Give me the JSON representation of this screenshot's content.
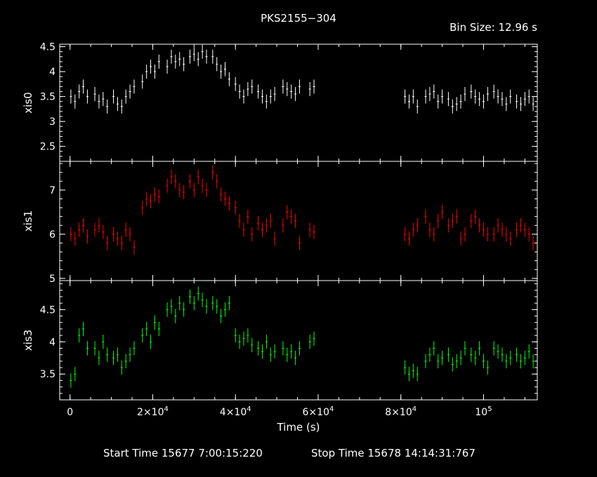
{
  "chart_data": {
    "type": "scatter",
    "title": "PKS2155−304",
    "bin_size": "Bin Size: 12.96 s",
    "xlabel": "Time (s)",
    "xlim": [
      -2500,
      113000
    ],
    "x_ticks": [
      {
        "value": 0,
        "label": "0",
        "exp": ""
      },
      {
        "value": 20000,
        "label": "2×10",
        "exp": "4"
      },
      {
        "value": 40000,
        "label": "4×10",
        "exp": "4"
      },
      {
        "value": 60000,
        "label": "6×10",
        "exp": "4"
      },
      {
        "value": 80000,
        "label": "8×10",
        "exp": "4"
      },
      {
        "value": 100000,
        "label": "10",
        "exp": "5"
      }
    ],
    "footer": {
      "start": "Start Time 15677  7:00:15:220",
      "stop": "Stop Time 15678 14:14:31:767"
    },
    "panels": [
      {
        "name": "xis0",
        "ylabel": "xis0",
        "color": "#ffffff",
        "ylim": [
          2.2,
          4.55
        ],
        "yticks": [
          {
            "v": 2.5,
            "l": "2.5"
          },
          {
            "v": 3,
            "l": "3"
          },
          {
            "v": 3.5,
            "l": "3.5"
          },
          {
            "v": 4,
            "l": "4"
          },
          {
            "v": 4.5,
            "l": "4.5"
          }
        ],
        "points": [
          [
            200,
            3.5
          ],
          [
            1200,
            3.4
          ],
          [
            2200,
            3.6
          ],
          [
            3200,
            3.7
          ],
          [
            4200,
            3.5
          ],
          [
            6000,
            3.55
          ],
          [
            7000,
            3.4
          ],
          [
            8000,
            3.45
          ],
          [
            9000,
            3.3
          ],
          [
            10500,
            3.5
          ],
          [
            11500,
            3.35
          ],
          [
            12500,
            3.3
          ],
          [
            13500,
            3.5
          ],
          [
            14500,
            3.6
          ],
          [
            15500,
            3.7
          ],
          [
            17500,
            3.8
          ],
          [
            18500,
            4.0
          ],
          [
            19500,
            4.1
          ],
          [
            20500,
            4.0
          ],
          [
            21500,
            4.2
          ],
          [
            23500,
            4.1
          ],
          [
            24500,
            4.3
          ],
          [
            25500,
            4.2
          ],
          [
            26500,
            4.25
          ],
          [
            27500,
            4.15
          ],
          [
            29000,
            4.3
          ],
          [
            30000,
            4.35
          ],
          [
            31000,
            4.25
          ],
          [
            32000,
            4.4
          ],
          [
            33000,
            4.3
          ],
          [
            34500,
            4.3
          ],
          [
            35500,
            4.15
          ],
          [
            36500,
            4.0
          ],
          [
            37500,
            4.05
          ],
          [
            38500,
            3.85
          ],
          [
            40000,
            3.75
          ],
          [
            41000,
            3.6
          ],
          [
            42000,
            3.5
          ],
          [
            43000,
            3.65
          ],
          [
            44000,
            3.7
          ],
          [
            45500,
            3.6
          ],
          [
            46500,
            3.5
          ],
          [
            47500,
            3.4
          ],
          [
            48500,
            3.5
          ],
          [
            49500,
            3.55
          ],
          [
            51500,
            3.7
          ],
          [
            52500,
            3.65
          ],
          [
            53500,
            3.6
          ],
          [
            54500,
            3.55
          ],
          [
            55500,
            3.7
          ],
          [
            58000,
            3.65
          ],
          [
            59000,
            3.7
          ],
          [
            81000,
            3.5
          ],
          [
            82000,
            3.4
          ],
          [
            83000,
            3.5
          ],
          [
            84000,
            3.3
          ],
          [
            86000,
            3.5
          ],
          [
            87000,
            3.55
          ],
          [
            88000,
            3.6
          ],
          [
            89000,
            3.4
          ],
          [
            90000,
            3.5
          ],
          [
            91500,
            3.45
          ],
          [
            92500,
            3.3
          ],
          [
            93500,
            3.35
          ],
          [
            94500,
            3.4
          ],
          [
            95500,
            3.55
          ],
          [
            97000,
            3.6
          ],
          [
            98000,
            3.5
          ],
          [
            99000,
            3.45
          ],
          [
            100000,
            3.4
          ],
          [
            101000,
            3.55
          ],
          [
            102500,
            3.6
          ],
          [
            103500,
            3.5
          ],
          [
            104500,
            3.45
          ],
          [
            105500,
            3.35
          ],
          [
            106500,
            3.5
          ],
          [
            108000,
            3.4
          ],
          [
            109000,
            3.35
          ],
          [
            110000,
            3.45
          ],
          [
            111000,
            3.5
          ],
          [
            112000,
            3.35
          ]
        ]
      },
      {
        "name": "xis1",
        "ylabel": "xis1",
        "color": "#ff0000",
        "ylim": [
          4.95,
          7.65
        ],
        "yticks": [
          {
            "v": 5,
            "l": "5"
          },
          {
            "v": 6,
            "l": "6"
          },
          {
            "v": 7,
            "l": "7"
          }
        ],
        "points": [
          [
            200,
            6.0
          ],
          [
            1200,
            5.9
          ],
          [
            2200,
            6.1
          ],
          [
            3200,
            6.2
          ],
          [
            4200,
            5.95
          ],
          [
            6000,
            6.1
          ],
          [
            7000,
            6.2
          ],
          [
            8000,
            6.05
          ],
          [
            9000,
            5.8
          ],
          [
            10500,
            6.0
          ],
          [
            11500,
            5.9
          ],
          [
            12500,
            5.8
          ],
          [
            13500,
            6.1
          ],
          [
            14500,
            6.0
          ],
          [
            15500,
            5.7
          ],
          [
            17500,
            6.6
          ],
          [
            18500,
            6.8
          ],
          [
            19500,
            6.75
          ],
          [
            20500,
            6.9
          ],
          [
            21500,
            6.85
          ],
          [
            23500,
            7.1
          ],
          [
            24500,
            7.3
          ],
          [
            25500,
            7.2
          ],
          [
            26500,
            7.0
          ],
          [
            27500,
            6.95
          ],
          [
            29000,
            7.2
          ],
          [
            30000,
            7.0
          ],
          [
            31000,
            7.3
          ],
          [
            32000,
            7.1
          ],
          [
            33000,
            7.0
          ],
          [
            34500,
            7.4
          ],
          [
            35500,
            7.2
          ],
          [
            36500,
            6.9
          ],
          [
            37500,
            6.8
          ],
          [
            38500,
            6.7
          ],
          [
            40000,
            6.6
          ],
          [
            41000,
            6.3
          ],
          [
            42000,
            6.1
          ],
          [
            43000,
            6.4
          ],
          [
            44000,
            6.0
          ],
          [
            45500,
            6.25
          ],
          [
            46500,
            6.1
          ],
          [
            47500,
            6.2
          ],
          [
            48500,
            6.3
          ],
          [
            49500,
            5.9
          ],
          [
            51500,
            6.2
          ],
          [
            52500,
            6.5
          ],
          [
            53500,
            6.4
          ],
          [
            54500,
            6.3
          ],
          [
            55500,
            5.8
          ],
          [
            58000,
            6.1
          ],
          [
            59000,
            6.05
          ],
          [
            81000,
            6.0
          ],
          [
            82000,
            5.9
          ],
          [
            83000,
            6.1
          ],
          [
            84000,
            6.2
          ],
          [
            86000,
            6.4
          ],
          [
            87000,
            6.1
          ],
          [
            88000,
            6.0
          ],
          [
            89000,
            6.3
          ],
          [
            90000,
            6.5
          ],
          [
            91500,
            6.2
          ],
          [
            92500,
            6.3
          ],
          [
            93500,
            6.4
          ],
          [
            94500,
            5.9
          ],
          [
            95500,
            6.0
          ],
          [
            97000,
            6.3
          ],
          [
            98000,
            6.4
          ],
          [
            99000,
            6.2
          ],
          [
            100000,
            6.1
          ],
          [
            101000,
            6.0
          ],
          [
            102500,
            6.0
          ],
          [
            103500,
            6.2
          ],
          [
            104500,
            6.1
          ],
          [
            105500,
            6.0
          ],
          [
            106500,
            5.9
          ],
          [
            108000,
            6.1
          ],
          [
            109000,
            6.2
          ],
          [
            110000,
            6.1
          ],
          [
            111000,
            6.0
          ],
          [
            112000,
            5.8
          ]
        ]
      },
      {
        "name": "xis3",
        "ylabel": "xis3",
        "color": "#00ff00",
        "ylim": [
          3.1,
          4.95
        ],
        "yticks": [
          {
            "v": 3.5,
            "l": "3.5"
          },
          {
            "v": 4,
            "l": "4"
          },
          {
            "v": 4.5,
            "l": "4.5"
          }
        ],
        "points": [
          [
            200,
            3.4
          ],
          [
            1200,
            3.5
          ],
          [
            2200,
            4.1
          ],
          [
            3200,
            4.2
          ],
          [
            4200,
            3.9
          ],
          [
            6000,
            3.9
          ],
          [
            7000,
            3.75
          ],
          [
            8000,
            4.0
          ],
          [
            9000,
            3.8
          ],
          [
            10500,
            3.75
          ],
          [
            11500,
            3.8
          ],
          [
            12500,
            3.6
          ],
          [
            13500,
            3.7
          ],
          [
            14500,
            3.8
          ],
          [
            15500,
            3.9
          ],
          [
            17500,
            4.1
          ],
          [
            18500,
            4.2
          ],
          [
            19500,
            4.0
          ],
          [
            20500,
            4.3
          ],
          [
            21500,
            4.2
          ],
          [
            23500,
            4.5
          ],
          [
            24500,
            4.55
          ],
          [
            25500,
            4.4
          ],
          [
            26500,
            4.6
          ],
          [
            27500,
            4.5
          ],
          [
            29000,
            4.7
          ],
          [
            30000,
            4.6
          ],
          [
            31000,
            4.75
          ],
          [
            32000,
            4.65
          ],
          [
            33000,
            4.55
          ],
          [
            34500,
            4.6
          ],
          [
            35500,
            4.55
          ],
          [
            36500,
            4.4
          ],
          [
            37500,
            4.5
          ],
          [
            38500,
            4.6
          ],
          [
            40000,
            4.1
          ],
          [
            41000,
            4.0
          ],
          [
            42000,
            4.05
          ],
          [
            43000,
            4.1
          ],
          [
            44000,
            3.95
          ],
          [
            45500,
            3.9
          ],
          [
            46500,
            3.85
          ],
          [
            47500,
            4.0
          ],
          [
            48500,
            3.8
          ],
          [
            49500,
            3.85
          ],
          [
            51500,
            3.9
          ],
          [
            52500,
            3.8
          ],
          [
            53500,
            3.85
          ],
          [
            54500,
            3.75
          ],
          [
            55500,
            3.9
          ],
          [
            58000,
            4.0
          ],
          [
            59000,
            4.05
          ],
          [
            81000,
            3.6
          ],
          [
            82000,
            3.5
          ],
          [
            83000,
            3.55
          ],
          [
            84000,
            3.5
          ],
          [
            86000,
            3.7
          ],
          [
            87000,
            3.8
          ],
          [
            88000,
            3.9
          ],
          [
            89000,
            3.7
          ],
          [
            90000,
            3.75
          ],
          [
            91500,
            3.8
          ],
          [
            92500,
            3.65
          ],
          [
            93500,
            3.7
          ],
          [
            94500,
            3.75
          ],
          [
            95500,
            3.9
          ],
          [
            97000,
            3.8
          ],
          [
            98000,
            3.75
          ],
          [
            99000,
            3.9
          ],
          [
            100000,
            3.7
          ],
          [
            101000,
            3.6
          ],
          [
            102500,
            3.9
          ],
          [
            103500,
            3.85
          ],
          [
            104500,
            3.8
          ],
          [
            105500,
            3.7
          ],
          [
            106500,
            3.75
          ],
          [
            108000,
            3.8
          ],
          [
            109000,
            3.7
          ],
          [
            110000,
            3.75
          ],
          [
            111000,
            3.85
          ],
          [
            112000,
            3.7
          ]
        ]
      }
    ]
  }
}
